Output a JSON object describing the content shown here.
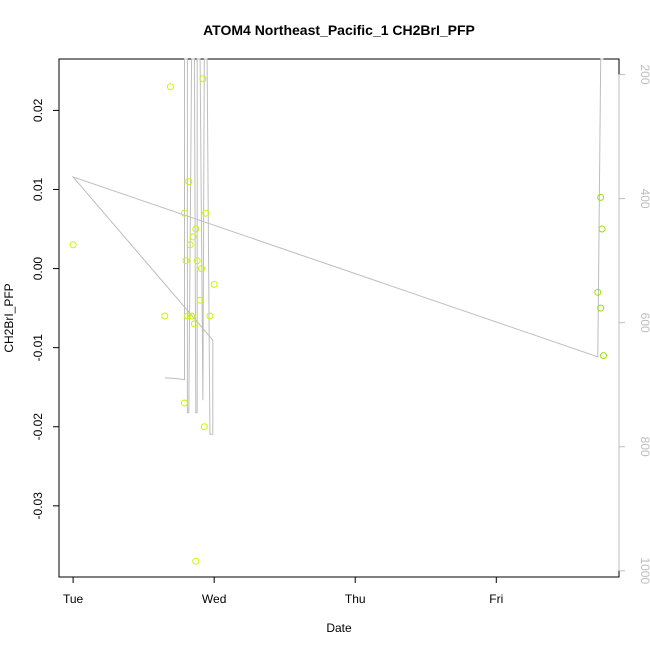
{
  "chart_data": {
    "type": "scatter",
    "title": "ATOM4 Northeast_Pacific_1 CH2BrI_PFP",
    "xlabel": "Date",
    "ylabel": "CH2BrI_PFP",
    "x_ticks": [
      "Tue",
      "Wed",
      "Thu",
      "Fri"
    ],
    "xlim_days": [
      -0.1,
      3.87
    ],
    "ylim": [
      -0.039,
      0.0265
    ],
    "y_ticks": [
      0.02,
      0.01,
      0.0,
      -0.01,
      -0.02,
      -0.03
    ],
    "y_tick_labels": [
      "0.02",
      "0.01",
      "0.00",
      "-0.01",
      "-0.02",
      "-0.03"
    ],
    "right_axis": {
      "label": "",
      "lim": [
        1010,
        175
      ],
      "ticks": [
        200,
        400,
        600,
        800,
        1000
      ],
      "tick_labels": [
        "200",
        "400",
        "600",
        "800",
        "1000"
      ],
      "color": "#bdbdbd"
    },
    "grid": false,
    "legend": "none",
    "colors": {
      "points_early": "#ccf500",
      "points_late": "#9be000",
      "line": "#bdbdbd",
      "axis": "#000000"
    },
    "series": [
      {
        "values": [
          {
            "x": 0.0,
            "y": 0.003
          },
          {
            "x": 0.65,
            "y": -0.006
          },
          {
            "x": 0.69,
            "y": 0.023
          },
          {
            "x": 0.79,
            "y": -0.017
          },
          {
            "x": 0.79,
            "y": 0.007
          },
          {
            "x": 0.8,
            "y": 0.001
          },
          {
            "x": 0.81,
            "y": -0.006
          },
          {
            "x": 0.82,
            "y": 0.011
          },
          {
            "x": 0.83,
            "y": 0.003
          },
          {
            "x": 0.84,
            "y": -0.006
          },
          {
            "x": 0.85,
            "y": 0.004
          },
          {
            "x": 0.86,
            "y": -0.007
          },
          {
            "x": 0.87,
            "y": 0.005
          },
          {
            "x": 0.87,
            "y": -0.037
          },
          {
            "x": 0.88,
            "y": 0.001
          },
          {
            "x": 0.9,
            "y": -0.004
          },
          {
            "x": 0.91,
            "y": 0.0
          },
          {
            "x": 0.92,
            "y": 0.024
          },
          {
            "x": 0.93,
            "y": -0.02
          },
          {
            "x": 0.94,
            "y": 0.007
          },
          {
            "x": 0.97,
            "y": -0.006
          },
          {
            "x": 1.0,
            "y": -0.002
          },
          {
            "x": 3.72,
            "y": -0.003
          },
          {
            "x": 3.74,
            "y": 0.009
          },
          {
            "x": 3.74,
            "y": -0.005
          },
          {
            "x": 3.75,
            "y": 0.005
          },
          {
            "x": 3.76,
            "y": -0.011
          }
        ]
      }
    ],
    "altitude_track": [
      {
        "x": 0.65,
        "y": 689
      },
      {
        "x": 0.73,
        "y": 690
      },
      {
        "x": 0.79,
        "y": 692
      },
      {
        "x": 0.79,
        "y": 175
      },
      {
        "x": 0.81,
        "y": 175
      },
      {
        "x": 0.81,
        "y": 745
      },
      {
        "x": 0.82,
        "y": 745
      },
      {
        "x": 0.84,
        "y": 175
      },
      {
        "x": 0.86,
        "y": 175
      },
      {
        "x": 0.87,
        "y": 745
      },
      {
        "x": 0.88,
        "y": 745
      },
      {
        "x": 0.88,
        "y": 175
      },
      {
        "x": 0.9,
        "y": 175
      },
      {
        "x": 0.92,
        "y": 725
      },
      {
        "x": 0.93,
        "y": 175
      },
      {
        "x": 0.95,
        "y": 175
      },
      {
        "x": 0.97,
        "y": 780
      },
      {
        "x": 0.99,
        "y": 780
      },
      {
        "x": 0.99,
        "y": 628
      },
      {
        "x": 0.0,
        "y": 365
      },
      {
        "x": 3.72,
        "y": 655
      },
      {
        "x": 3.74,
        "y": 175
      },
      {
        "x": 3.76,
        "y": 175
      }
    ]
  }
}
